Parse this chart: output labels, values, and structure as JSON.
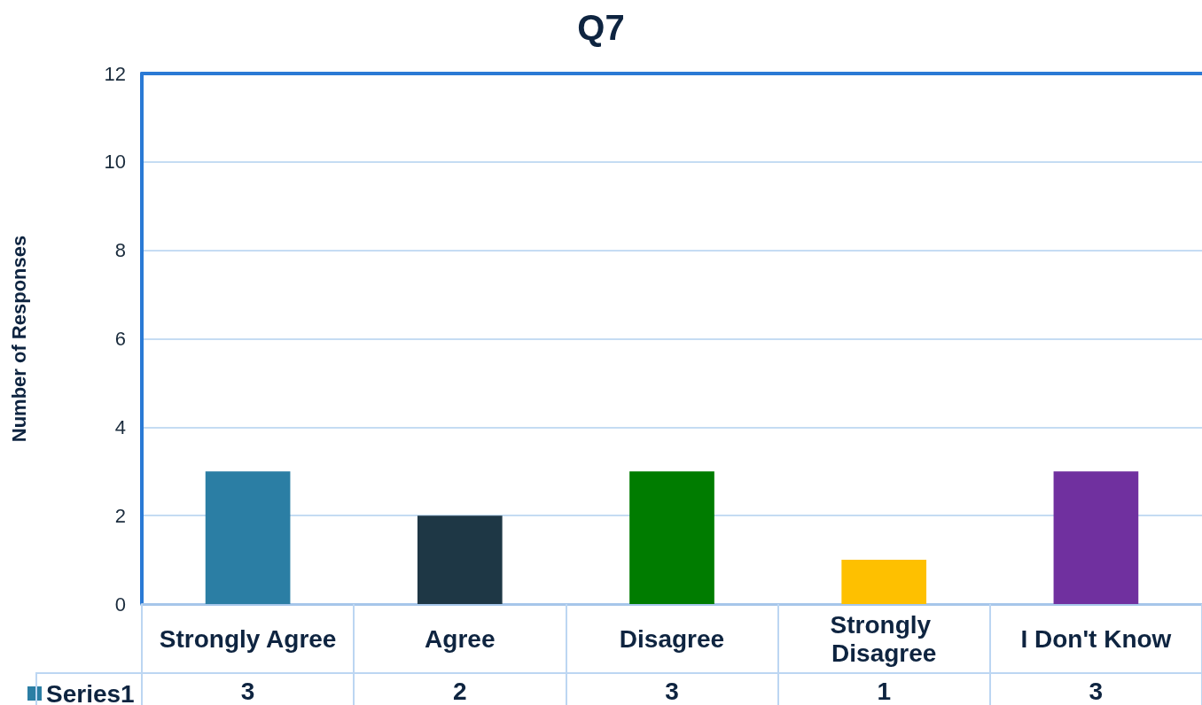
{
  "chart_data": {
    "type": "bar",
    "title": "Q7",
    "ylabel": "Number of Responses",
    "categories": [
      "Strongly Agree",
      "Agree",
      "Disagree",
      "Strongly Disagree",
      "I Don't Know"
    ],
    "series": [
      {
        "name": "Series1",
        "colors": [
          "#2b7ea4",
          "#1e3745",
          "#007c00",
          "#fec000",
          "#70309f"
        ],
        "values": [
          3,
          2,
          3,
          1,
          3
        ]
      }
    ],
    "ylim": [
      0,
      12
    ],
    "yticks": [
      0,
      2,
      4,
      6,
      8,
      10,
      12
    ],
    "grid": "y",
    "legend": "bottom left",
    "data_labels": true
  }
}
